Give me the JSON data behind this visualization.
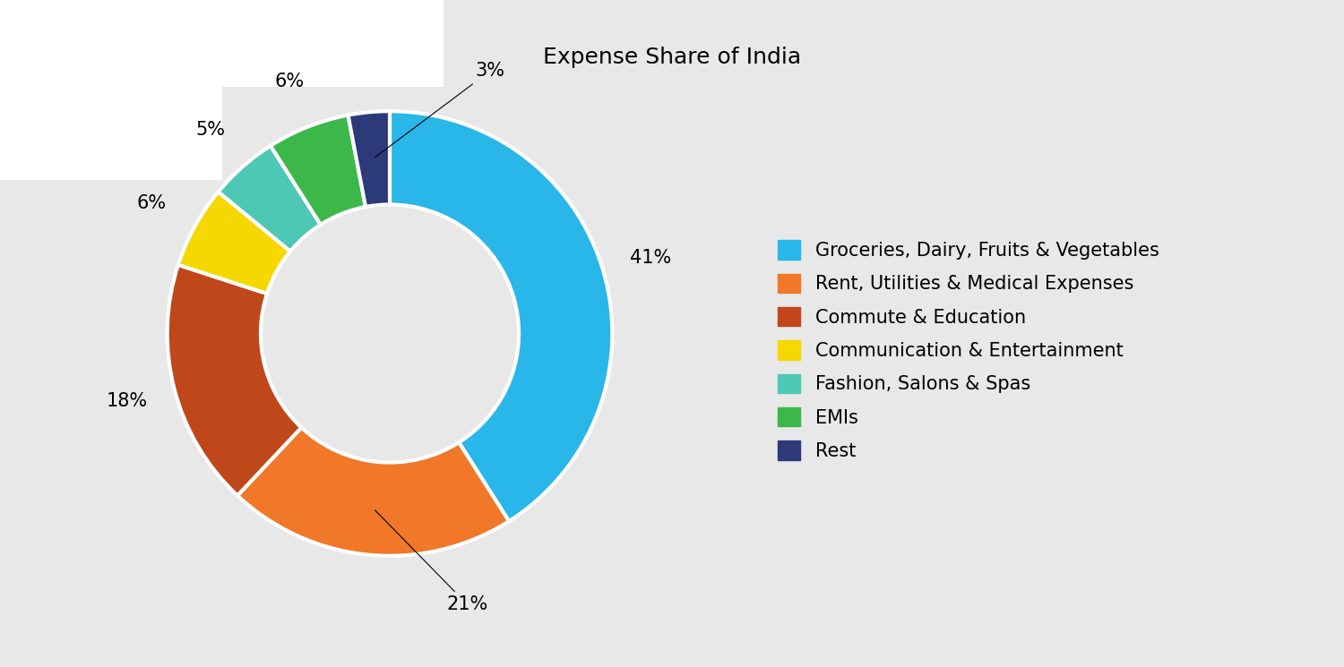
{
  "title": "Expense Share of India",
  "categories": [
    "Groceries, Dairy, Fruits & Vegetables",
    "Rent, Utilities & Medical Expenses",
    "Commute & Education",
    "Communication & Entertainment",
    "Fashion, Salons & Spas",
    "EMIs",
    "Rest"
  ],
  "values": [
    41,
    21,
    18,
    6,
    5,
    6,
    3
  ],
  "colors": [
    "#29B6E8",
    "#F07828",
    "#C0471A",
    "#F5D800",
    "#4DC8B4",
    "#3CB84A",
    "#2D3A7A"
  ],
  "bg_white": "#FFFFFF",
  "bg_gray": "#E8E8E8",
  "title_fontsize": 18,
  "label_fontsize": 15,
  "legend_fontsize": 15,
  "wedge_linewidth": 3,
  "wedge_edge_color": "#FFFFFF",
  "donut_hole": 0.58,
  "startangle": 90
}
